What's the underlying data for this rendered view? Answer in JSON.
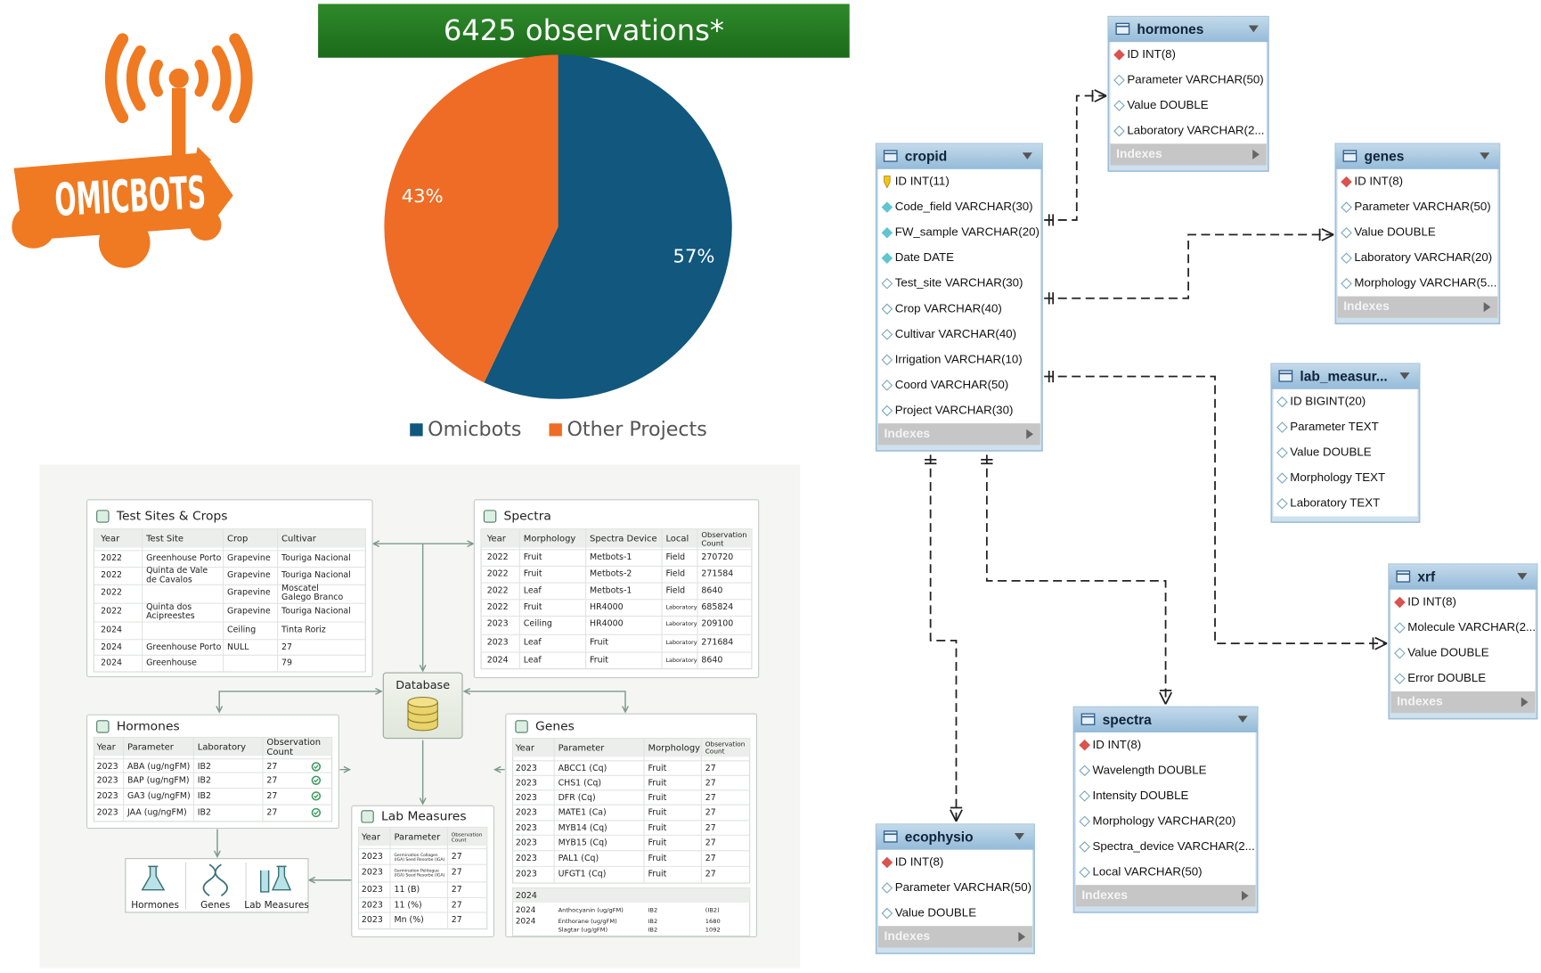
{
  "logo": {
    "text": "OMICBOTS"
  },
  "chart_data": {
    "type": "pie",
    "title": "6425 observations*",
    "categories": [
      "Omicbots",
      "Other Projects"
    ],
    "values": [
      57,
      43
    ],
    "value_labels": [
      "57%",
      "43%"
    ],
    "colors": [
      "#11577e",
      "#ef6c26"
    ],
    "legend": "bottom"
  },
  "er_diagram": {
    "tables": [
      {
        "name": "hormones",
        "fields": [
          "ID INT(8)",
          "Parameter VARCHAR(50)",
          "Value DOUBLE",
          "Laboratory VARCHAR(2..."
        ],
        "footer": "Indexes"
      },
      {
        "name": "cropid",
        "fields": [
          "ID INT(11)",
          "Code_field VARCHAR(30)",
          "FW_sample VARCHAR(20)",
          "Date DATE",
          "Test_site VARCHAR(30)",
          "Crop VARCHAR(40)",
          "Cultivar VARCHAR(40)",
          "Irrigation VARCHAR(10)",
          "Coord VARCHAR(50)",
          "Project VARCHAR(30)"
        ],
        "footer": "Indexes"
      },
      {
        "name": "genes",
        "fields": [
          "ID INT(8)",
          "Parameter VARCHAR(50)",
          "Value DOUBLE",
          "Laboratory VARCHAR(20)",
          "Morphology VARCHAR(5..."
        ],
        "footer": "Indexes"
      },
      {
        "name": "lab_measur...",
        "fields": [
          "ID BIGINT(20)",
          "Parameter TEXT",
          "Value DOUBLE",
          "Morphology TEXT",
          "Laboratory TEXT"
        ]
      },
      {
        "name": "xrf",
        "fields": [
          "ID INT(8)",
          "Molecule VARCHAR(2...",
          "Value DOUBLE",
          "Error DOUBLE"
        ],
        "footer": "Indexes"
      },
      {
        "name": "spectra",
        "fields": [
          "ID INT(8)",
          "Wavelength DOUBLE",
          "Intensity DOUBLE",
          "Morphology VARCHAR(20)",
          "Spectra_device VARCHAR(2...",
          "Local VARCHAR(50)"
        ],
        "footer": "Indexes"
      },
      {
        "name": "ecophysio",
        "fields": [
          "ID INT(8)",
          "Parameter VARCHAR(50)",
          "Value DOUBLE"
        ],
        "footer": "Indexes"
      }
    ]
  },
  "infographic": {
    "panels": [
      {
        "title": "Test Sites & Crops",
        "columns": [
          "Year",
          "Test Site",
          "Crop",
          "Cultivar"
        ],
        "rows": [
          [
            "2022",
            "Greenhouse Porto",
            "Grapevine",
            "Touriga Nacional"
          ],
          [
            "2022",
            "Quinta de Vale de Cavalos",
            "Grapevine",
            "Touriga Nacional"
          ],
          [
            "2022",
            null,
            "Grapevine",
            "Moscatel Galego Branco"
          ],
          [
            "2022",
            "Quinta dos Acipreestes",
            "Grapevine",
            "Touriga Nacional"
          ],
          [
            "2024",
            null,
            "Ceiling",
            "Tinta Roriz"
          ],
          [
            "2024",
            "Greenhouse Porto",
            "NULL",
            "27"
          ],
          [
            "2024",
            "Greenhouse",
            null,
            "79"
          ]
        ]
      },
      {
        "title": "Spectra",
        "columns": [
          "Year",
          "Morphology",
          "Spectra Device",
          "Local",
          "Observation Count"
        ],
        "rows": [
          [
            "2022",
            "Fruit",
            "Metbots-1",
            "Field",
            "270720"
          ],
          [
            "2022",
            "Fruit",
            "Metbots-2",
            "Field",
            "271584"
          ],
          [
            "2022",
            "Leaf",
            "Metbots-1",
            "Field",
            "8640"
          ],
          [
            "2022",
            "Fruit",
            "HR4000",
            "Laboratory",
            "685824"
          ],
          [
            "2023",
            "Ceiling",
            "HR4000",
            "Laboratory",
            "209100"
          ],
          [
            "2023",
            "Leaf",
            "Fruit",
            "Laboratory",
            "271684"
          ],
          [
            "2024",
            "Leaf",
            "Fruit",
            "Laboratory",
            "8640"
          ]
        ]
      },
      {
        "title": "Hormones",
        "columns": [
          "Year",
          "Parameter",
          "Laboratory",
          "Observation Count"
        ],
        "rows": [
          [
            "2023",
            "ABA (ug/ngFM)",
            "IB2",
            "27"
          ],
          [
            "2023",
            "BAP (ug/ngFM)",
            "IB2",
            "27"
          ],
          [
            "2023",
            "GA3 (ug/ngFM)",
            "IB2",
            "27"
          ],
          [
            "2023",
            "JAA (ug/ngFM)",
            "IB2",
            "27"
          ]
        ]
      },
      {
        "title": "Genes",
        "columns": [
          "Year",
          "Parameter",
          "Morphology",
          "Observation Count"
        ],
        "rows": [
          [
            "2023",
            "ABCC1 (Cq)",
            "Fruit",
            "27"
          ],
          [
            "2023",
            "CHS1 (Cq)",
            "Fruit",
            "27"
          ],
          [
            "2023",
            "DFR (Cq)",
            "Fruit",
            "27"
          ],
          [
            "2023",
            "MATE1 (Ca)",
            "Fruit",
            "27"
          ],
          [
            "2023",
            "MYB14 (Cq)",
            "Fruit",
            "27"
          ],
          [
            "2023",
            "MYB15 (Cq)",
            "Fruit",
            "27"
          ],
          [
            "2023",
            "PAL1 (Cq)",
            "Fruit",
            "27"
          ],
          [
            "2023",
            "UFGT1 (Cq)",
            "Fruit",
            "27"
          ]
        ],
        "subtable": {
          "heading": "2024",
          "rows": [
            [
              "2024",
              "Anthocyanin (ug/gFM)",
              "IB2",
              "(IB2)"
            ],
            [
              "2024",
              "Enthorane (ug/gFM)",
              "IB2",
              "1680"
            ],
            [
              "Slagtar (ug/gFM)",
              "IB2",
              "1092"
            ]
          ]
        }
      },
      {
        "title": "Lab Measures",
        "columns": [
          "Year",
          "Parameter",
          "Observation Count"
        ],
        "rows": [
          [
            "2023",
            "Germination Collagen (IGA) Seed Resorbe (IGA)",
            "27"
          ],
          [
            "2023",
            "Germination Pelitegue (IGA) Seed Resorbe (IGA)",
            "27"
          ],
          [
            "2023",
            "11 (B)",
            "27"
          ],
          [
            "2023",
            "11 (%)",
            "27"
          ],
          [
            "2023",
            "Mn (%)",
            "27"
          ]
        ]
      }
    ],
    "database": "Database",
    "icons": [
      "Hormones",
      "Genes",
      "Lab Measures"
    ]
  }
}
